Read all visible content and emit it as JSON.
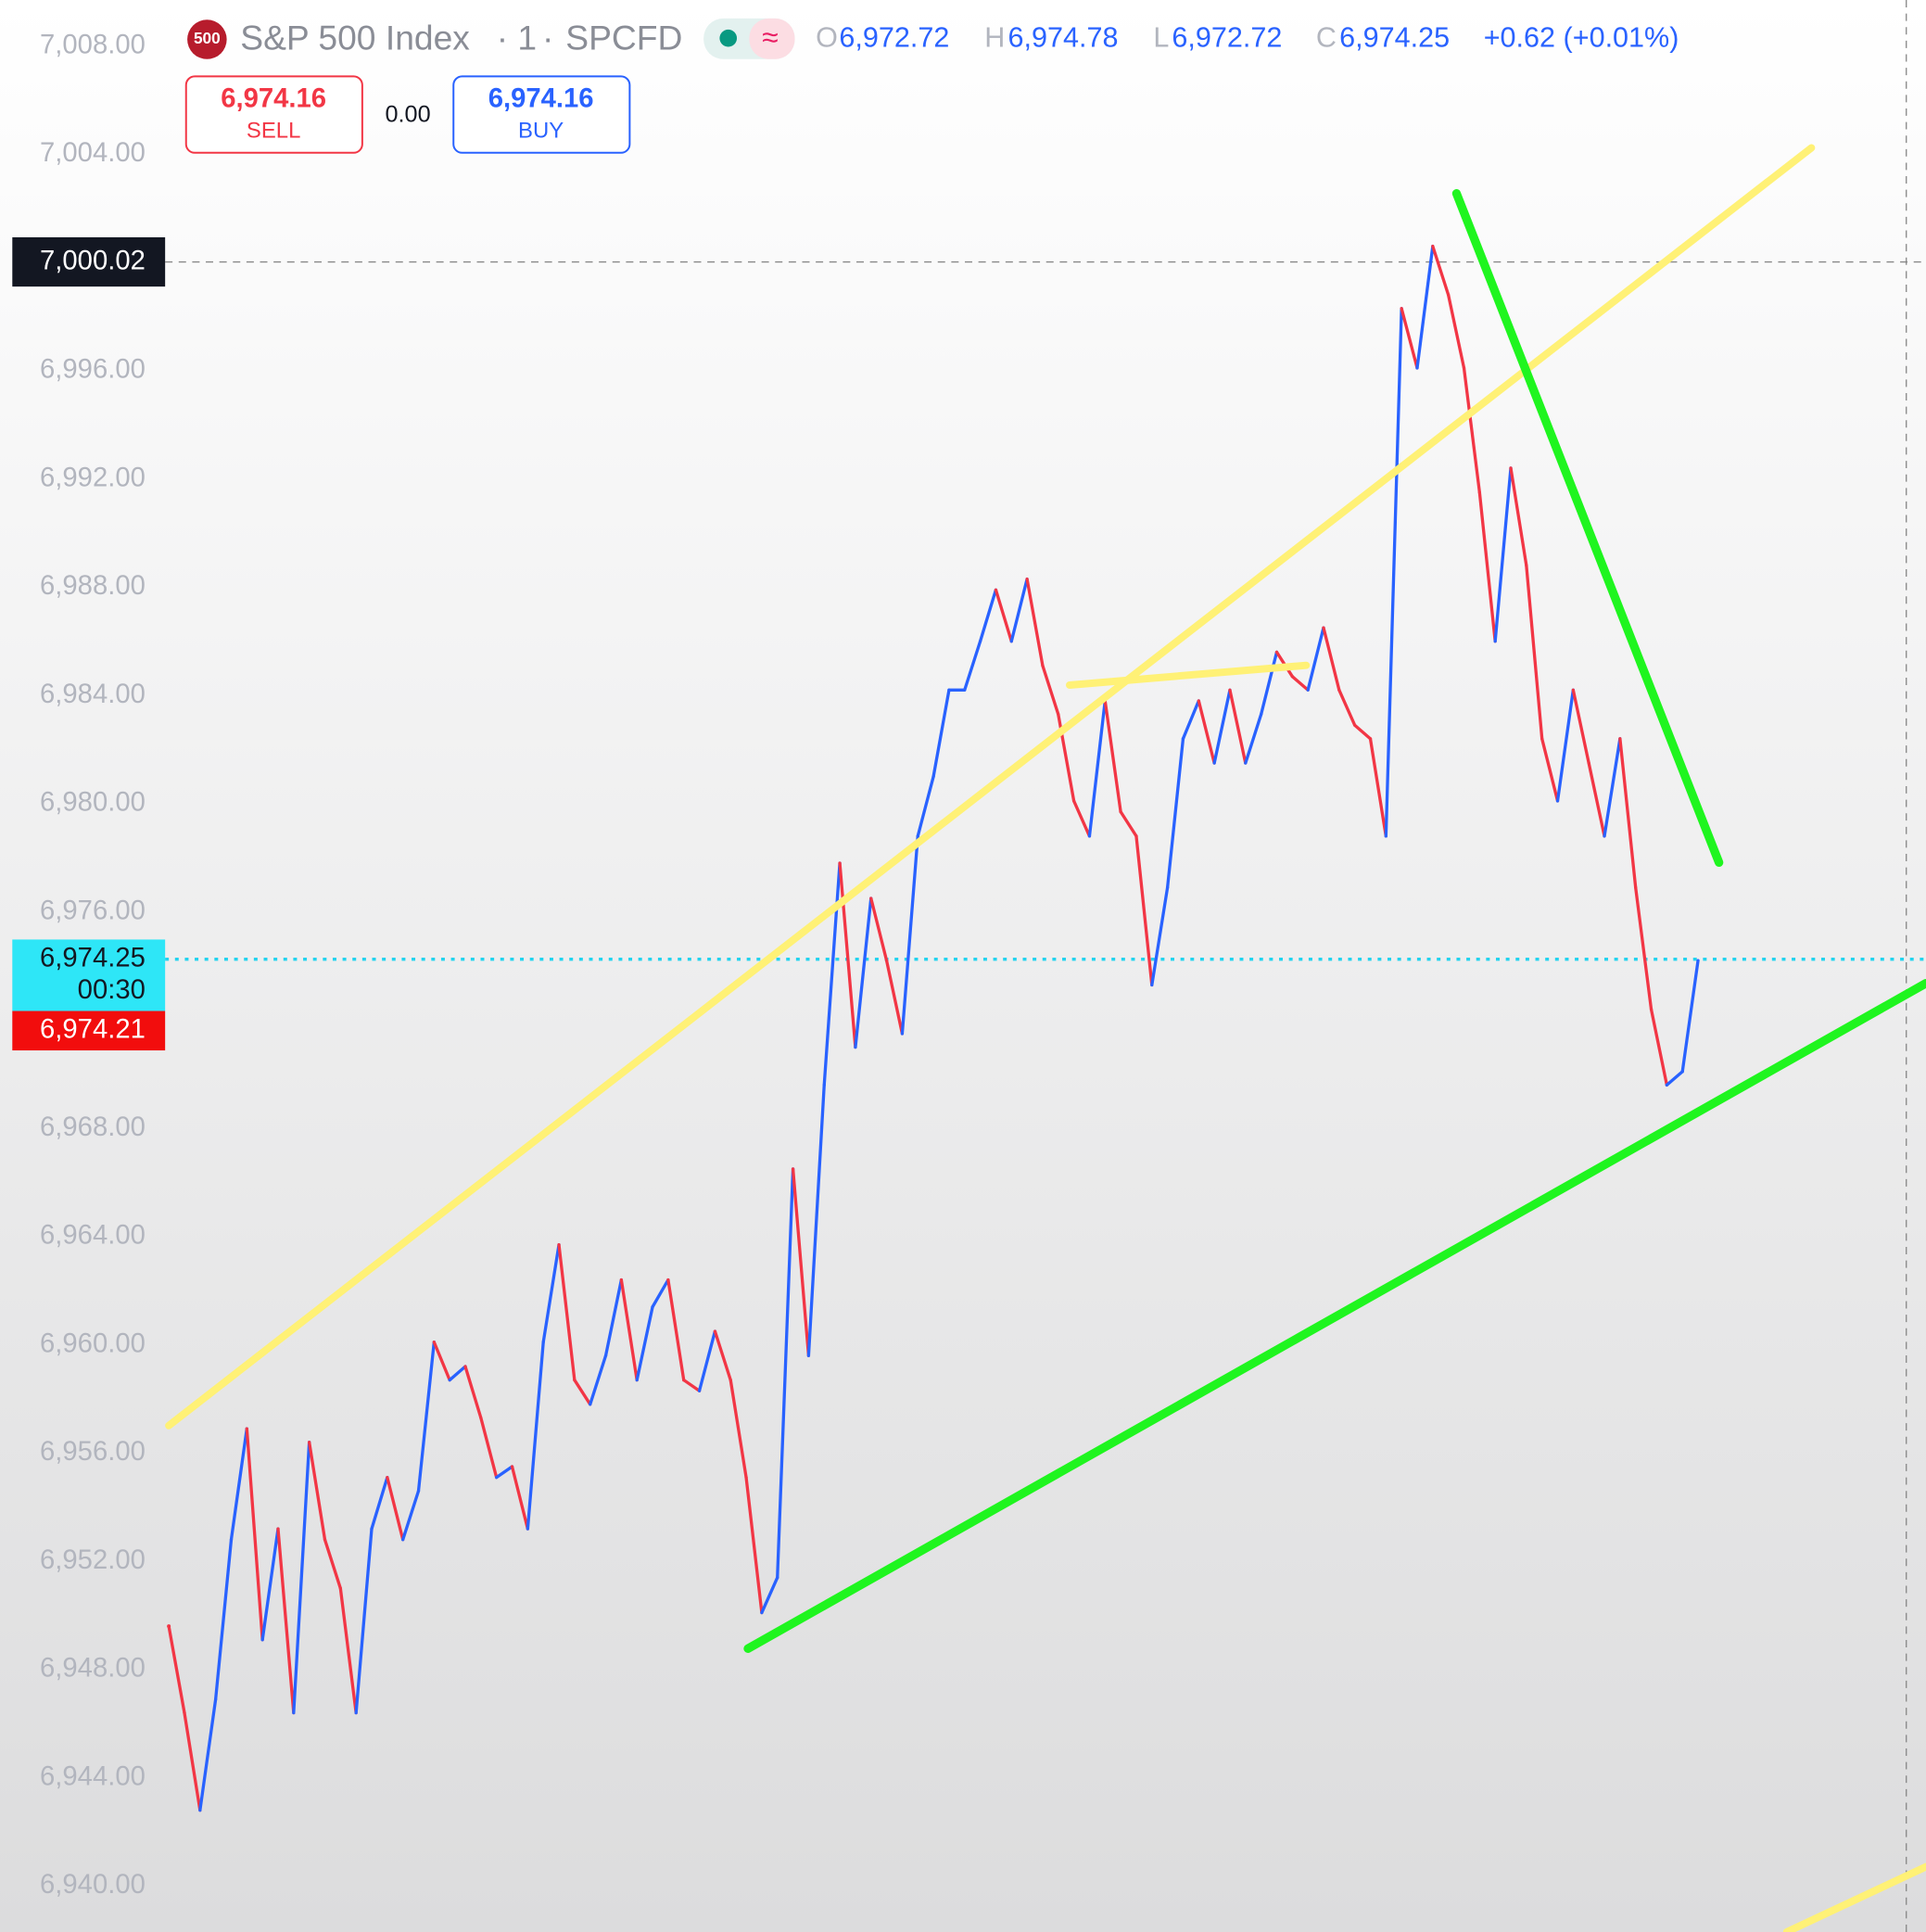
{
  "chart_data": {
    "type": "line",
    "icon": "500",
    "title": "S&P 500 Index",
    "interval": "1",
    "source": "SPCFD",
    "ohlc": [
      {
        "key": "O",
        "value": "6,972.72"
      },
      {
        "key": "H",
        "value": "6,974.78"
      },
      {
        "key": "L",
        "value": "6,972.72"
      },
      {
        "key": "C",
        "value": "6,974.25"
      }
    ],
    "change": "+0.62 (+0.01%)",
    "trade": {
      "sell_price": "6,974.16",
      "sell_label": "SELL",
      "spread": "0.00",
      "buy_price": "6,974.16",
      "buy_label": "BUY"
    },
    "up_color": "#2962ff",
    "down_color": "#f23645",
    "series": [
      {
        "name": "S&P 500 Index",
        "color": "#2962ff",
        "values": [
          6949.6,
          6946.4,
          6942.8,
          6946.9,
          6952.8,
          6956.9,
          6949.1,
          6953.2,
          6946.4,
          6956.4,
          6952.8,
          6951.0,
          6946.4,
          6953.2,
          6955.1,
          6952.8,
          6954.6,
          6960.1,
          6958.7,
          6959.2,
          6957.3,
          6955.1,
          6955.5,
          6953.2,
          6960.1,
          6963.7,
          6958.7,
          6957.8,
          6959.6,
          6962.4,
          6958.7,
          6961.4,
          6962.4,
          6958.7,
          6958.3,
          6960.5,
          6958.7,
          6955.1,
          6950.1,
          6951.4,
          6966.5,
          6959.6,
          6969.6,
          6977.8,
          6971.0,
          6976.5,
          6974.2,
          6971.5,
          6978.8,
          6981.0,
          6984.2,
          6984.2,
          6986.0,
          6987.9,
          6986.0,
          6988.3,
          6985.1,
          6983.3,
          6980.1,
          6978.8,
          6983.8,
          6979.7,
          6978.8,
          6973.3,
          6976.9,
          6982.4,
          6983.8,
          6981.5,
          6984.2,
          6981.5,
          6983.3,
          6985.6,
          6984.7,
          6984.2,
          6986.5,
          6984.2,
          6982.9,
          6982.4,
          6978.8,
          6998.3,
          6996.1,
          7000.6,
          6998.8,
          6996.1,
          6991.5,
          6986.0,
          6992.4,
          6988.8,
          6982.4,
          6980.1,
          6984.2,
          6981.5,
          6978.8,
          6982.4,
          6976.9,
          6972.4,
          6969.6,
          6970.1,
          6974.2
        ]
      }
    ],
    "ylim": [
      6938.3,
      7009.7
    ],
    "yticks": [
      {
        "value": 7008,
        "label": "7,008.00"
      },
      {
        "value": 7004,
        "label": "7,004.00"
      },
      {
        "value": 6996,
        "label": "6,996.00"
      },
      {
        "value": 6992,
        "label": "6,992.00"
      },
      {
        "value": 6988,
        "label": "6,988.00"
      },
      {
        "value": 6984,
        "label": "6,984.00"
      },
      {
        "value": 6980,
        "label": "6,980.00"
      },
      {
        "value": 6976,
        "label": "6,976.00"
      },
      {
        "value": 6968,
        "label": "6,968.00"
      },
      {
        "value": 6964,
        "label": "6,964.00"
      },
      {
        "value": 6960,
        "label": "6,960.00"
      },
      {
        "value": 6956,
        "label": "6,956.00"
      },
      {
        "value": 6952,
        "label": "6,952.00"
      },
      {
        "value": 6948,
        "label": "6,948.00"
      },
      {
        "value": 6944,
        "label": "6,944.00"
      },
      {
        "value": 6940,
        "label": "6,940.00"
      }
    ],
    "crosshair_price": {
      "value": 7000.02,
      "label": "7,000.02"
    },
    "last_price": {
      "value": 6974.25,
      "label": "6,974.25",
      "countdown": "00:30"
    },
    "bid_price": {
      "value": 6974.21,
      "label": "6,974.21"
    }
  }
}
